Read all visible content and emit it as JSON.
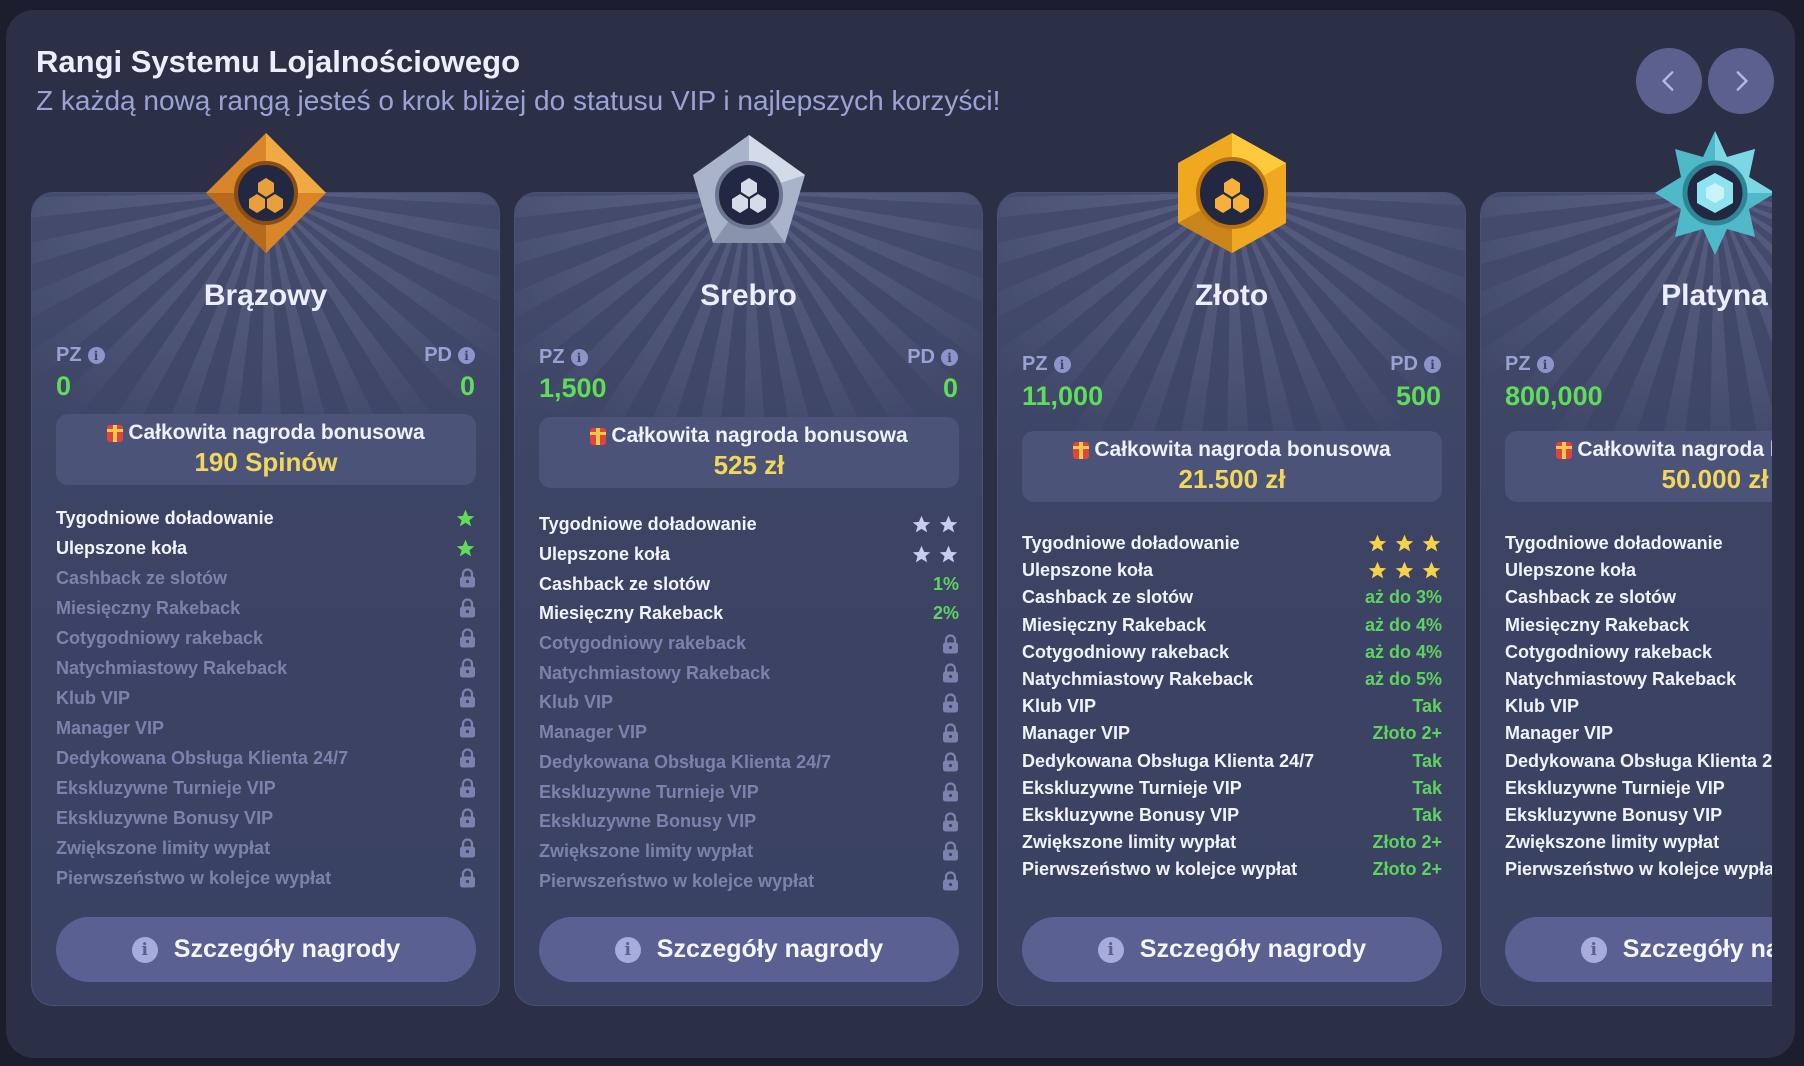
{
  "header": {
    "title": "Rangi Systemu Lojalnościowego",
    "subtitle": "Z każdą nową rangą jesteś o krok bliżej do statusu VIP i najlepszych korzyści!",
    "prev_icon": "chevron-left-icon",
    "next_icon": "chevron-right-icon"
  },
  "labels": {
    "pz": "PZ",
    "pd": "PD",
    "bonus": "Całkowita nagroda bonusowa",
    "details": "Szczegóły nagrody"
  },
  "colors": {
    "green": "#5fd35f",
    "bonus_yellow": "#f3d75b",
    "bronze_star": "#5fdc5a",
    "silver_star": "#c9cbf0",
    "gold_star": "#f5d24a"
  },
  "feature_names": [
    "Tygodniowe doładowanie",
    "Ulepszone koła",
    "Cashback ze slotów",
    "Miesięczny Rakeback",
    "Cotygodniowy rakeback",
    "Natychmiastowy Rakeback",
    "Klub VIP",
    "Manager VIP",
    "Dedykowana Obsługa Klienta 24/7",
    "Ekskluzywne Turnieje VIP",
    "Ekskluzywne Bonusy VIP",
    "Zwiększone limity wypłat",
    "Pierwszeństwo w kolejce wypłat"
  ],
  "ranks": [
    {
      "name": "Brązowy",
      "badge": "bronze-diamond",
      "pz": "0",
      "pd": "0",
      "bonus": "190 Spinów",
      "star_color": "#5fdc5a",
      "features": [
        {
          "type": "stars",
          "count": 1
        },
        {
          "type": "stars",
          "count": 1
        },
        {
          "type": "lock"
        },
        {
          "type": "lock"
        },
        {
          "type": "lock"
        },
        {
          "type": "lock"
        },
        {
          "type": "lock"
        },
        {
          "type": "lock"
        },
        {
          "type": "lock"
        },
        {
          "type": "lock"
        },
        {
          "type": "lock"
        },
        {
          "type": "lock"
        },
        {
          "type": "lock"
        }
      ]
    },
    {
      "name": "Srebro",
      "badge": "silver-pentagon",
      "pz": "1,500",
      "pd": "0",
      "bonus": "525 zł",
      "star_color": "#c9cbf0",
      "features": [
        {
          "type": "stars",
          "count": 2
        },
        {
          "type": "stars",
          "count": 2
        },
        {
          "type": "text",
          "text": "1%"
        },
        {
          "type": "text",
          "text": "2%"
        },
        {
          "type": "lock"
        },
        {
          "type": "lock"
        },
        {
          "type": "lock"
        },
        {
          "type": "lock"
        },
        {
          "type": "lock"
        },
        {
          "type": "lock"
        },
        {
          "type": "lock"
        },
        {
          "type": "lock"
        },
        {
          "type": "lock"
        }
      ]
    },
    {
      "name": "Złoto",
      "badge": "gold-hexagon",
      "pz": "11,000",
      "pd": "500",
      "bonus": "21.500 zł",
      "star_color": "#f5d24a",
      "features": [
        {
          "type": "stars",
          "count": 3
        },
        {
          "type": "stars",
          "count": 3
        },
        {
          "type": "text",
          "text": "aż do 3%"
        },
        {
          "type": "text",
          "text": "aż do 4%"
        },
        {
          "type": "text",
          "text": "aż do 4%"
        },
        {
          "type": "text",
          "text": "aż do 5%"
        },
        {
          "type": "text",
          "text": "Tak"
        },
        {
          "type": "text",
          "text": "Złoto 2+"
        },
        {
          "type": "text",
          "text": "Tak"
        },
        {
          "type": "text",
          "text": "Tak"
        },
        {
          "type": "text",
          "text": "Tak"
        },
        {
          "type": "text",
          "text": "Złoto 2+"
        },
        {
          "type": "text",
          "text": "Złoto 2+"
        }
      ]
    },
    {
      "name": "Platyna",
      "badge": "platinum-star",
      "pz": "800,000",
      "pd": "",
      "bonus": "50.000 zł",
      "star_color": "#f5d24a",
      "features": [
        {
          "type": "none"
        },
        {
          "type": "none"
        },
        {
          "type": "none"
        },
        {
          "type": "none"
        },
        {
          "type": "none"
        },
        {
          "type": "none"
        },
        {
          "type": "none"
        },
        {
          "type": "none"
        },
        {
          "type": "none"
        },
        {
          "type": "none"
        },
        {
          "type": "none"
        },
        {
          "type": "none"
        },
        {
          "type": "none"
        }
      ]
    }
  ]
}
